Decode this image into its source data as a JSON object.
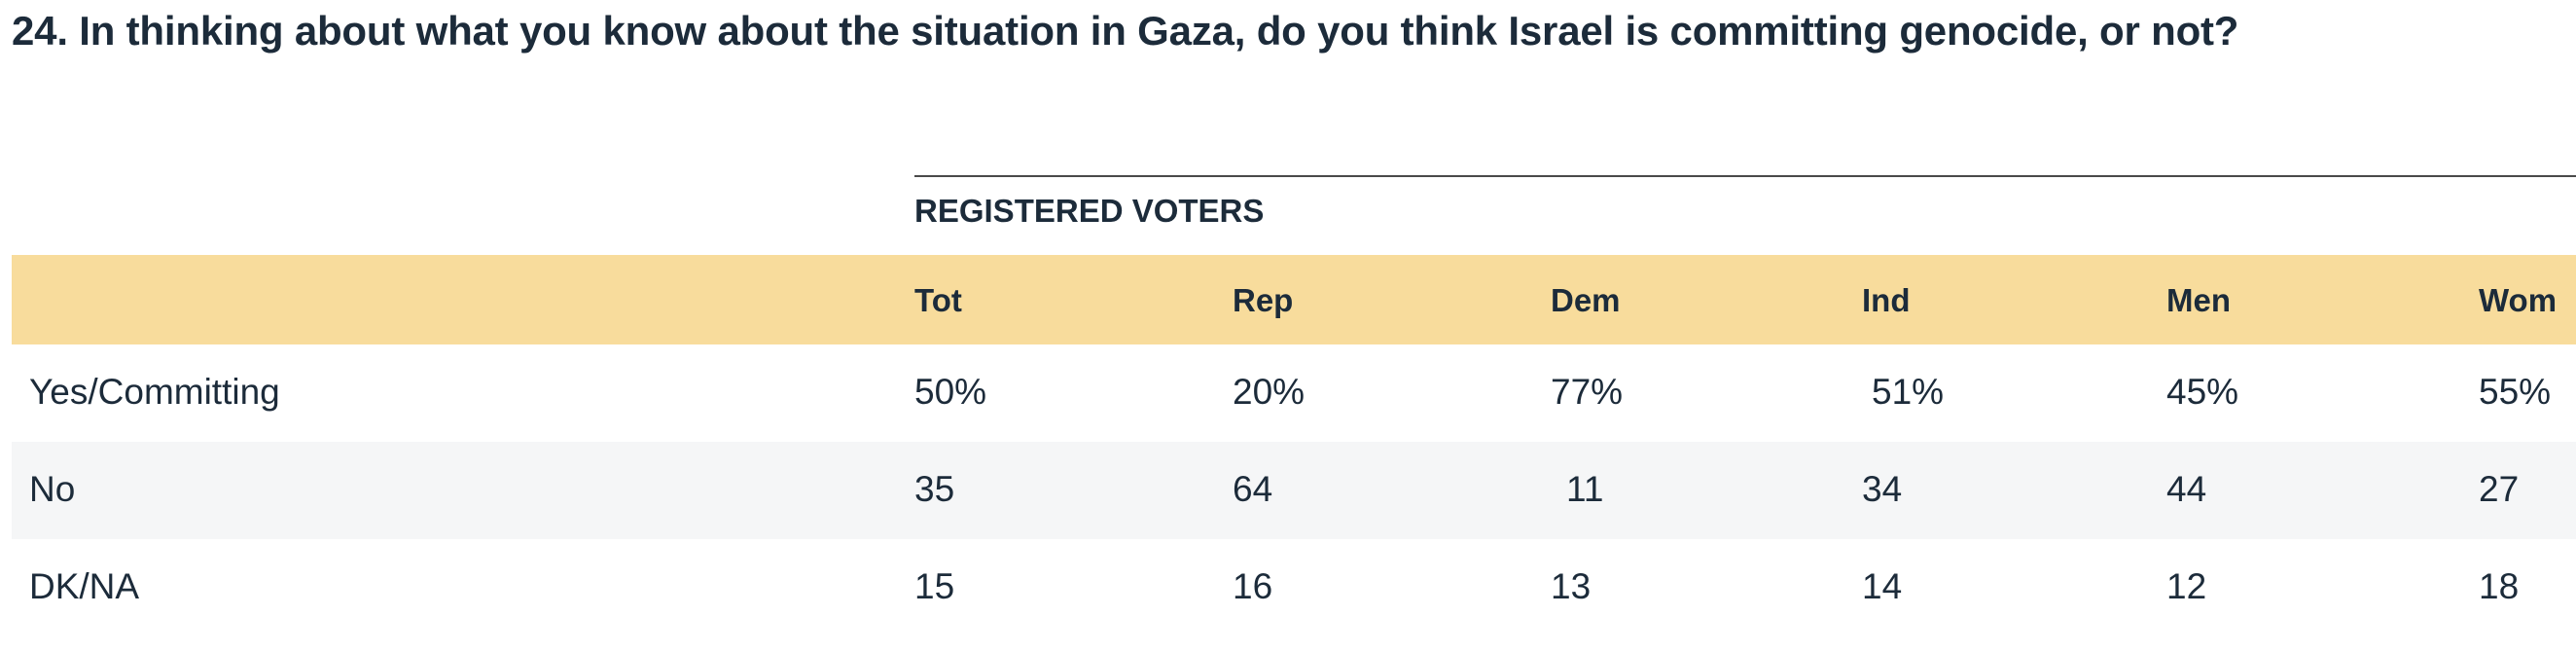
{
  "question": "24. In thinking about what you know about the situation in Gaza, do you think Israel is committing genocide, or not?",
  "group_label": "REGISTERED VOTERS",
  "columns": [
    "Tot",
    "Rep",
    "Dem",
    "Ind",
    "Men",
    "Wom"
  ],
  "rows": [
    {
      "label": "Yes/Committing",
      "values": [
        "50%",
        "20%",
        "77%",
        "51%",
        "45%",
        "55%"
      ]
    },
    {
      "label": "No",
      "values": [
        "35",
        "64",
        "11",
        "34",
        "44",
        "27"
      ]
    },
    {
      "label": "DK/NA",
      "values": [
        "15",
        "16",
        "13",
        "14",
        "12",
        "18"
      ]
    }
  ],
  "colors": {
    "header_background": "#f8dc9c",
    "alt_row_background": "#f5f6f7",
    "text": "#1c2b3a"
  }
}
